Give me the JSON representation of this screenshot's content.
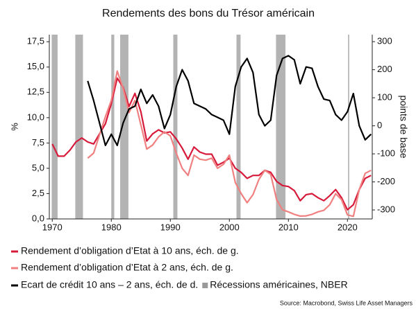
{
  "chart_data": {
    "type": "line",
    "title": "Rendements des bons du Trésor américain",
    "ylabel": "%",
    "y2label": "points de base",
    "source": "Source: Macrobond, Swiss Life Asset Managers",
    "xlim": [
      1969.5,
      2024.2
    ],
    "xticks": [
      1970,
      1980,
      1990,
      2000,
      2010,
      2020
    ],
    "ylim": [
      0,
      18.2
    ],
    "yticks": [
      {
        "value": 0,
        "label": "0,0"
      },
      {
        "value": 2.5,
        "label": "2,5"
      },
      {
        "value": 5,
        "label": "5,0"
      },
      {
        "value": 7.5,
        "label": "7,5"
      },
      {
        "value": 10,
        "label": "10,0"
      },
      {
        "value": 12.5,
        "label": "12,5"
      },
      {
        "value": 15,
        "label": "15,0"
      },
      {
        "value": 17.5,
        "label": "17,5"
      }
    ],
    "y2lim": [
      -332,
      325
    ],
    "y2ticks": [
      -300,
      -200,
      -100,
      0,
      100,
      200,
      300
    ],
    "grid": false,
    "recession_label": "Récessions américaines, NBER",
    "recession_color": "#9a9a9a",
    "recessions": [
      [
        1969.9,
        1970.9
      ],
      [
        1973.9,
        1975.2
      ],
      [
        1980.0,
        1980.5
      ],
      [
        1981.5,
        1982.9
      ],
      [
        1990.5,
        1991.2
      ],
      [
        2001.2,
        2001.9
      ],
      [
        2007.9,
        2009.5
      ],
      [
        2020.1,
        2020.3
      ]
    ],
    "x": [
      1970,
      1971,
      1972,
      1973,
      1974,
      1975,
      1976,
      1977,
      1978,
      1979,
      1980,
      1981,
      1982,
      1983,
      1984,
      1985,
      1986,
      1987,
      1988,
      1989,
      1990,
      1991,
      1992,
      1993,
      1994,
      1995,
      1996,
      1997,
      1998,
      1999,
      2000,
      2001,
      2002,
      2003,
      2004,
      2005,
      2006,
      2007,
      2008,
      2009,
      2010,
      2011,
      2012,
      2013,
      2014,
      2015,
      2016,
      2017,
      2018,
      2019,
      2020,
      2021,
      2022,
      2023,
      2024
    ],
    "series": [
      {
        "name": "Rendement d’obligation d’Etat à 10 ans, éch. de g.",
        "color": "#d7193a",
        "values": [
          7.4,
          6.2,
          6.2,
          6.8,
          7.6,
          8.0,
          7.6,
          7.4,
          8.4,
          9.4,
          11.4,
          13.9,
          13.0,
          11.1,
          12.4,
          10.6,
          7.7,
          8.4,
          8.8,
          8.5,
          8.6,
          7.9,
          7.0,
          5.9,
          7.1,
          6.6,
          6.4,
          6.4,
          5.3,
          5.6,
          6.0,
          5.0,
          4.6,
          4.0,
          4.3,
          4.3,
          4.8,
          4.6,
          3.7,
          3.3,
          3.2,
          2.8,
          1.8,
          2.4,
          2.5,
          2.1,
          1.8,
          2.3,
          2.9,
          2.1,
          0.9,
          1.4,
          2.9,
          4.0,
          4.3
        ]
      },
      {
        "name": "Rendement d’obligation d’Etat à 2 ans, éch. de g.",
        "color": "#f08080",
        "values": [
          null,
          null,
          null,
          null,
          null,
          null,
          6.0,
          6.5,
          8.3,
          10.1,
          11.7,
          14.6,
          12.9,
          10.5,
          11.7,
          9.3,
          6.9,
          7.3,
          8.1,
          8.6,
          8.2,
          6.5,
          5.0,
          4.3,
          6.3,
          5.9,
          5.8,
          6.0,
          5.0,
          5.4,
          6.3,
          3.6,
          2.5,
          1.6,
          2.4,
          3.9,
          4.8,
          4.4,
          1.9,
          0.9,
          0.7,
          0.45,
          0.28,
          0.3,
          0.45,
          0.7,
          0.85,
          1.4,
          2.5,
          1.9,
          0.4,
          0.25,
          2.9,
          4.5,
          4.8
        ]
      },
      {
        "name": "Ecart de crédit 10 ans – 2 ans, éch. de d.",
        "color": "#000000",
        "axis": "y2",
        "values": [
          null,
          null,
          null,
          null,
          null,
          null,
          160,
          90,
          10,
          -70,
          -30,
          -70,
          10,
          60,
          70,
          130,
          80,
          110,
          70,
          -10,
          40,
          140,
          200,
          160,
          80,
          70,
          60,
          40,
          30,
          20,
          -30,
          140,
          210,
          240,
          190,
          40,
          0,
          20,
          180,
          240,
          250,
          235,
          150,
          210,
          205,
          140,
          95,
          90,
          40,
          20,
          50,
          115,
          0,
          -50,
          -30
        ]
      }
    ]
  }
}
